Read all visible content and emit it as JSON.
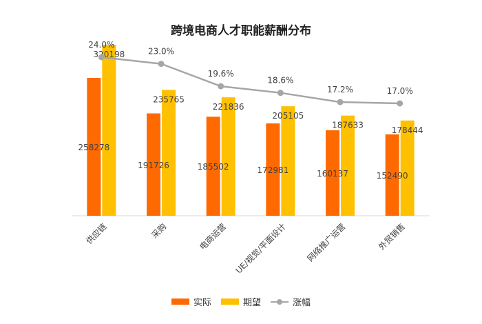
{
  "chart_data": {
    "type": "bar",
    "title": "跨境电商人才职能薪酬分布",
    "categories": [
      "供应链",
      "采购",
      "电商运营",
      "UE/视觉/平面设计",
      "网络推广运营",
      "外贸销售"
    ],
    "series": [
      {
        "name": "实际",
        "type": "bar",
        "color": "#ff6a00",
        "values": [
          258278,
          191726,
          185502,
          172981,
          160137,
          152490
        ]
      },
      {
        "name": "期望",
        "type": "bar",
        "color": "#ffc000",
        "values": [
          320198,
          235765,
          221836,
          205105,
          187633,
          178444
        ]
      },
      {
        "name": "涨幅",
        "type": "line",
        "color": "#a6a6a6",
        "values": [
          24.0,
          23.0,
          19.6,
          18.6,
          17.2,
          17.0
        ],
        "labels": [
          "24.0%",
          "23.0%",
          "19.6%",
          "18.6%",
          "17.2%",
          "17.0%"
        ]
      }
    ],
    "legend_position": "bottom",
    "grid": false
  }
}
